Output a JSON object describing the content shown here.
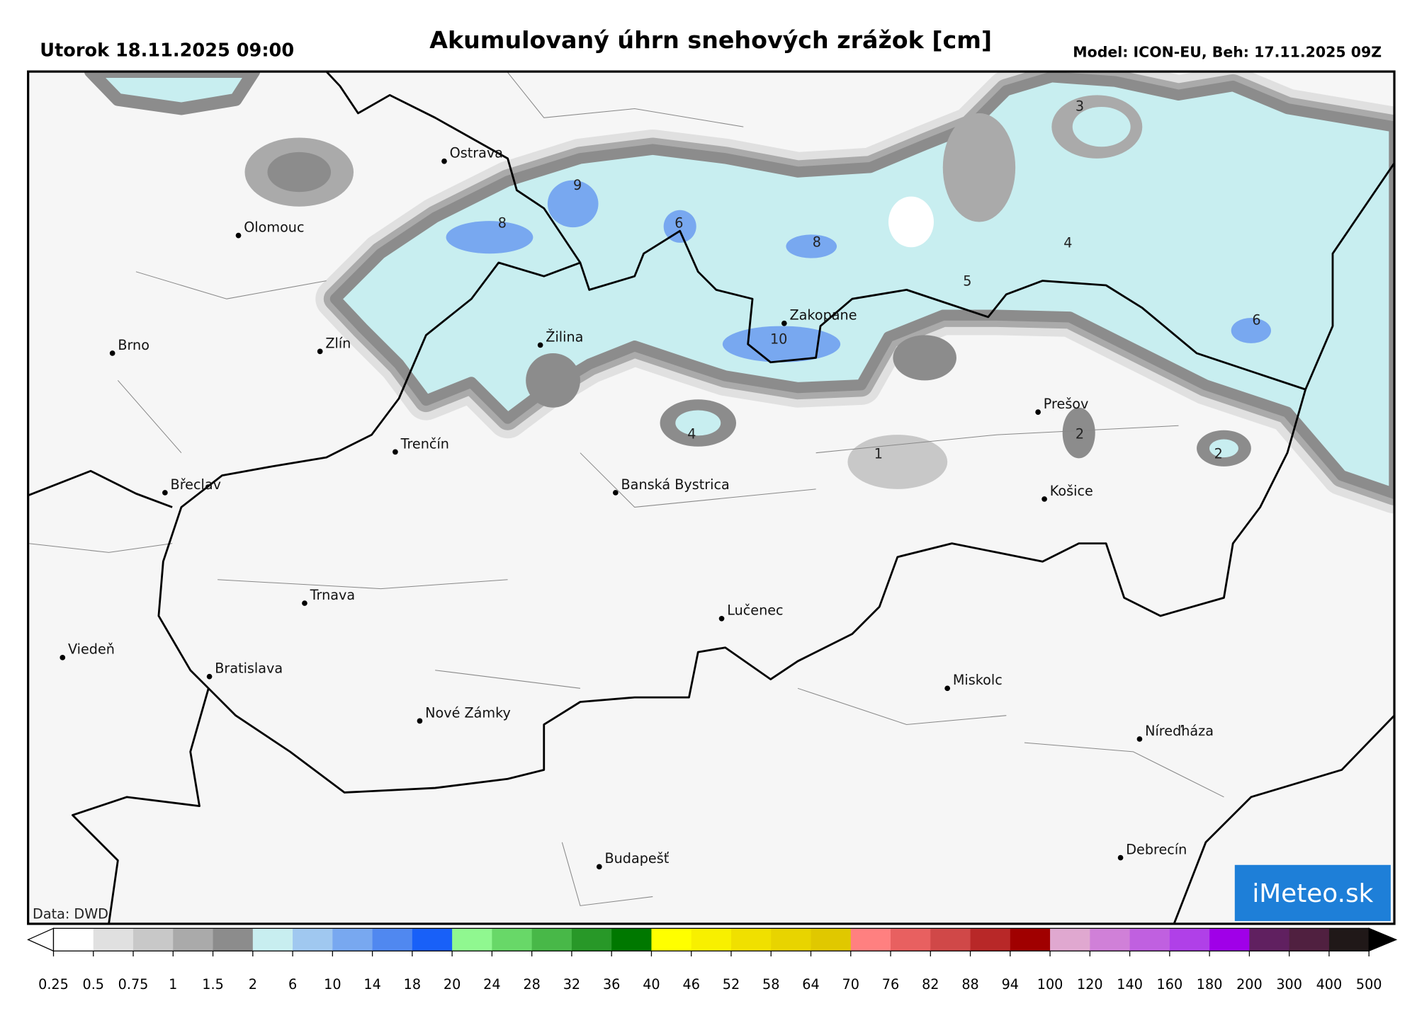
{
  "header": {
    "left": "Utorok 18.11.2025 09:00",
    "title": "Akumulovaný úhrn snehových zrážok [cm]",
    "right": "Model: ICON-EU, Beh: 17.11.2025 09Z"
  },
  "cities": [
    "Ostrava",
    "Olomouc",
    "Brno",
    "Zlín",
    "Žilina",
    "Zakopane",
    "Trenčín",
    "Prešov",
    "Břeclav",
    "Banská Bystrica",
    "Košice",
    "Trnava",
    "Lučenec",
    "Viedeň",
    "Bratislava",
    "Miskolc",
    "Nové Zámky",
    "Níreďháza",
    "Budapešť",
    "Debrecín"
  ],
  "contour_labels": [
    9,
    8,
    6,
    8,
    10,
    5,
    4,
    3,
    6,
    4,
    2,
    2,
    1
  ],
  "credit": "Data: DWD",
  "logo": "iMeteo.sk",
  "colorbar": {
    "ticks": [
      0.25,
      0.5,
      0.75,
      1,
      1.5,
      2,
      6,
      10,
      14,
      18,
      20,
      24,
      28,
      32,
      36,
      40,
      46,
      52,
      58,
      64,
      70,
      76,
      82,
      88,
      94,
      100,
      120,
      140,
      160,
      180,
      200,
      300,
      400,
      500
    ],
    "colors": [
      "#ffffff",
      "#e0e0e0",
      "#c8c8c8",
      "#aaaaaa",
      "#8c8c8c",
      "#c8eef0",
      "#a0c8f0",
      "#78a8f0",
      "#5088f0",
      "#1860f8",
      "#90f890",
      "#68d868",
      "#48b848",
      "#289828",
      "#007800",
      "#ffff00",
      "#f8f000",
      "#f0e000",
      "#e8d400",
      "#e0c800",
      "#ff8080",
      "#e86060",
      "#d04848",
      "#b82828",
      "#a00000",
      "#e0a8d0",
      "#d080d8",
      "#c060e0",
      "#b040e8",
      "#a000e8",
      "#602060",
      "#502040",
      "#201818"
    ],
    "under_color": "#ffffff",
    "over_color": "#000000"
  }
}
